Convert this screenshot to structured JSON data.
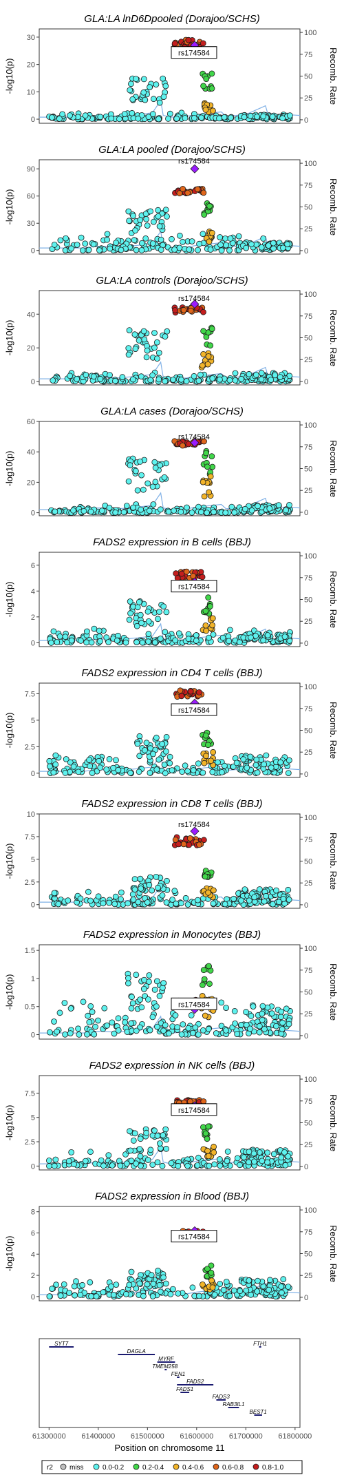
{
  "colors": {
    "recomb_line": "#7fb0e6",
    "lead_snp": "#9b1bff",
    "miss": "#bfbfbf",
    "r2_0.0-0.2": "#5ef2ee",
    "r2_0.2-0.4": "#41d64a",
    "r2_0.4-0.6": "#f2b42a",
    "r2_0.6-0.8": "#e0661b",
    "r2_0.8-1.0": "#c41e1e",
    "gene_line": "#1a1a70"
  },
  "shared_axes": {
    "y_left_label": "-log10(p)",
    "y_right_label": "Recomb. Rate",
    "y_right_ticks": [
      "0",
      "25",
      "50",
      "75",
      "100"
    ],
    "x_label": "Position on chromosome 11",
    "x_ticks": [
      "61300000",
      "61400000",
      "61500000",
      "61600000",
      "61700000",
      "61800000"
    ],
    "xlim": [
      61280000,
      61810000
    ]
  },
  "lead_snp_label": "rs174584",
  "legend": {
    "title": "r2",
    "items": [
      {
        "key": "miss",
        "label": "miss"
      },
      {
        "key": "r2_0.0-0.2",
        "label": "0.0-0.2"
      },
      {
        "key": "r2_0.2-0.4",
        "label": "0.2-0.4"
      },
      {
        "key": "r2_0.4-0.6",
        "label": "0.4-0.6"
      },
      {
        "key": "r2_0.6-0.8",
        "label": "0.6-0.8"
      },
      {
        "key": "r2_0.8-1.0",
        "label": "0.8-1.0"
      }
    ]
  },
  "chart_data": [
    {
      "type": "scatter",
      "title": "GLA:LA lnD6Dpooled (Dorajoo/SCHS)",
      "ylim": [
        -1.5,
        33
      ],
      "y_ticks": [
        0,
        10,
        20,
        30
      ],
      "peak": 28,
      "lead_p": 27,
      "label_value": 24,
      "label_boxed": true,
      "high_r2_band": [
        26,
        29
      ],
      "lower_ld_values": [
        17,
        15,
        8,
        5,
        2,
        1,
        0.5
      ]
    },
    {
      "type": "scatter",
      "title": "GLA:LA pooled (Dorajoo/SCHS)",
      "ylim": [
        -4,
        100
      ],
      "y_ticks": [
        0,
        30,
        60,
        90
      ],
      "peak": 90,
      "lead_p": 90,
      "label_value": 98,
      "label_boxed": false,
      "high_r2_band": [
        63,
        68
      ],
      "lower_ld_values": [
        52,
        45,
        30,
        22,
        20,
        18,
        5,
        1
      ]
    },
    {
      "type": "scatter",
      "title": "GLA:LA controls (Dorajoo/SCHS)",
      "ylim": [
        -2,
        54
      ],
      "y_ticks": [
        0,
        20,
        40
      ],
      "peak": 46,
      "lead_p": 46,
      "label_value": 49,
      "label_boxed": false,
      "high_r2_band": [
        41,
        44
      ],
      "lower_ld_values": [
        35,
        32,
        27,
        22,
        20,
        5,
        3,
        1
      ]
    },
    {
      "type": "scatter",
      "title": "GLA:LA cases (Dorajoo/SCHS)",
      "ylim": [
        -2,
        60
      ],
      "y_ticks": [
        0,
        20,
        40,
        60
      ],
      "peak": 46,
      "lead_p": 46,
      "label_value": 49.5,
      "label_boxed": false,
      "high_r2_band": [
        44,
        47
      ],
      "lower_ld_values": [
        42,
        36,
        32,
        24,
        20,
        5,
        3,
        1
      ]
    },
    {
      "type": "scatter",
      "title": "FADS2 expression in B cells (BBJ)",
      "ylim": [
        -0.3,
        7
      ],
      "y_ticks": [
        0,
        2,
        4,
        6
      ],
      "peak": 5.9,
      "lead_p": 4.7,
      "label_value": 4.3,
      "label_boxed": true,
      "high_r2_band": [
        5,
        5.5
      ],
      "lower_ld_values": [
        3.7,
        3.2,
        2.4,
        1.5,
        1.0,
        0.5,
        0.2
      ]
    },
    {
      "type": "scatter",
      "title": "FADS2 expression in CD4 T cells (BBJ)",
      "ylim": [
        -0.4,
        8.5
      ],
      "y_ticks": [
        0,
        2.5,
        5,
        7.5
      ],
      "peak": 7.9,
      "lead_p": 6.6,
      "label_value": 5.9,
      "label_boxed": true,
      "high_r2_band": [
        7.2,
        7.8
      ],
      "lower_ld_values": [
        4,
        3.5,
        2.5,
        2.2,
        1.5,
        1.0,
        0.5
      ]
    },
    {
      "type": "scatter",
      "title": "FADS2 expression in CD8 T cells (BBJ)",
      "ylim": [
        -0.4,
        10
      ],
      "y_ticks": [
        0,
        2.5,
        5,
        7.5,
        10
      ],
      "peak": 8.1,
      "lead_p": 8.1,
      "label_value": 8.8,
      "label_boxed": false,
      "high_r2_band": [
        6.5,
        7.5
      ],
      "lower_ld_values": [
        3.8,
        3.1,
        2.5,
        2.0,
        1.5,
        1.0,
        0.5
      ]
    },
    {
      "type": "scatter",
      "title": "FADS2 expression in Monocytes (BBJ)",
      "ylim": [
        -0.08,
        1.6
      ],
      "y_ticks": [
        0,
        0.5,
        1,
        1.5
      ],
      "peak": 0.6,
      "lead_p": 0.45,
      "label_value": 0.53,
      "label_boxed": true,
      "high_r2_band": [
        0.55,
        0.62
      ],
      "lower_ld_values": [
        1.25,
        1.1,
        0.9,
        0.7,
        0.5,
        0.3,
        0.1
      ]
    },
    {
      "type": "scatter",
      "title": "FADS2 expression in NK cells (BBJ)",
      "ylim": [
        -0.4,
        9.3
      ],
      "y_ticks": [
        0,
        2.5,
        5,
        7.5
      ],
      "peak": 7.3,
      "lead_p": 6.2,
      "label_value": 5.7,
      "label_boxed": true,
      "high_r2_band": [
        6.3,
        6.8
      ],
      "lower_ld_values": [
        4.3,
        3.8,
        2.5,
        2.2,
        1.5,
        1.0,
        0.5
      ]
    },
    {
      "type": "scatter",
      "title": "FADS2 expression in Blood (BBJ)",
      "ylim": [
        -0.4,
        8.5
      ],
      "y_ticks": [
        0,
        2,
        4,
        6,
        8
      ],
      "peak": 6.2,
      "lead_p": 6.2,
      "label_value": 5.6,
      "label_boxed": true,
      "high_r2_band": [
        5.7,
        6.2
      ],
      "lower_ld_values": [
        3.0,
        2.5,
        2.0,
        1.5,
        1.0,
        0.5
      ]
    }
  ],
  "genes": [
    {
      "name": "SYT7",
      "start": 61300000,
      "end": 61350000,
      "row": 0
    },
    {
      "name": "FTH1",
      "start": 61727000,
      "end": 61731000,
      "row": 0
    },
    {
      "name": "DAGLA",
      "start": 61440000,
      "end": 61515000,
      "row": 1
    },
    {
      "name": "MYRF",
      "start": 61520000,
      "end": 61556000,
      "row": 2
    },
    {
      "name": "TMEM258",
      "start": 61535000,
      "end": 61536000,
      "row": 3
    },
    {
      "name": "FEN1",
      "start": 61560000,
      "end": 61565000,
      "row": 4
    },
    {
      "name": "FADS2",
      "start": 61560000,
      "end": 61634000,
      "row": 5
    },
    {
      "name": "FADS1",
      "start": 61567000,
      "end": 61585000,
      "row": 6
    },
    {
      "name": "FADS3",
      "start": 61640000,
      "end": 61659000,
      "row": 7
    },
    {
      "name": "RAB3IL1",
      "start": 61664000,
      "end": 61686000,
      "row": 8
    },
    {
      "name": "BEST1",
      "start": 61717000,
      "end": 61733000,
      "row": 9
    }
  ]
}
